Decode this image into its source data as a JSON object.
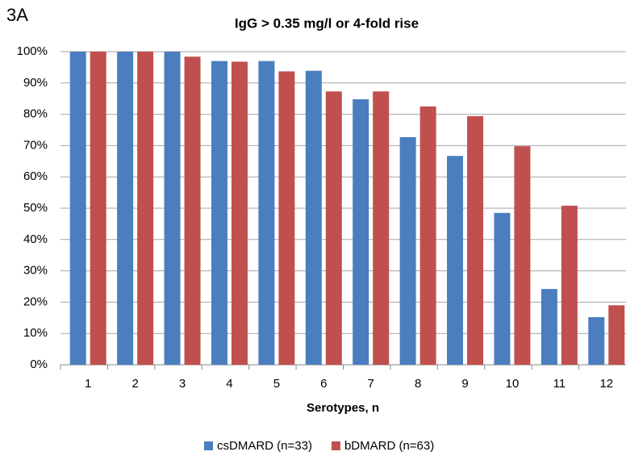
{
  "chart_data": {
    "type": "bar",
    "panel_label": "3A",
    "title": "IgG > 0.35 mg/l or 4-fold rise",
    "x_label": "Serotypes, n",
    "categories": [
      "1",
      "2",
      "3",
      "4",
      "5",
      "6",
      "7",
      "8",
      "9",
      "10",
      "11",
      "12"
    ],
    "series": [
      {
        "name": "csDMARD (n=33)",
        "color": "#4a7ebf",
        "values": [
          100,
          100,
          100,
          97,
          97,
          93.9,
          84.8,
          72.7,
          66.7,
          48.5,
          24.2,
          15.2
        ]
      },
      {
        "name": "bDMARD (n=63)",
        "color": "#c0504d",
        "values": [
          100,
          100,
          98.4,
          96.8,
          93.7,
          87.3,
          87.3,
          82.5,
          79.4,
          69.8,
          50.8,
          19.0
        ]
      }
    ],
    "ylim": [
      0,
      100
    ],
    "yticks": [
      {
        "value": 0,
        "label": "0%"
      },
      {
        "value": 10,
        "label": "10%"
      },
      {
        "value": 20,
        "label": "20%"
      },
      {
        "value": 30,
        "label": "30%"
      },
      {
        "value": 40,
        "label": "40%"
      },
      {
        "value": 50,
        "label": "50%"
      },
      {
        "value": 60,
        "label": "60%"
      },
      {
        "value": 70,
        "label": "70%"
      },
      {
        "value": 80,
        "label": "80%"
      },
      {
        "value": 90,
        "label": "90%"
      },
      {
        "value": 100,
        "label": "100%"
      }
    ],
    "grid": true,
    "legend": "bottom"
  }
}
